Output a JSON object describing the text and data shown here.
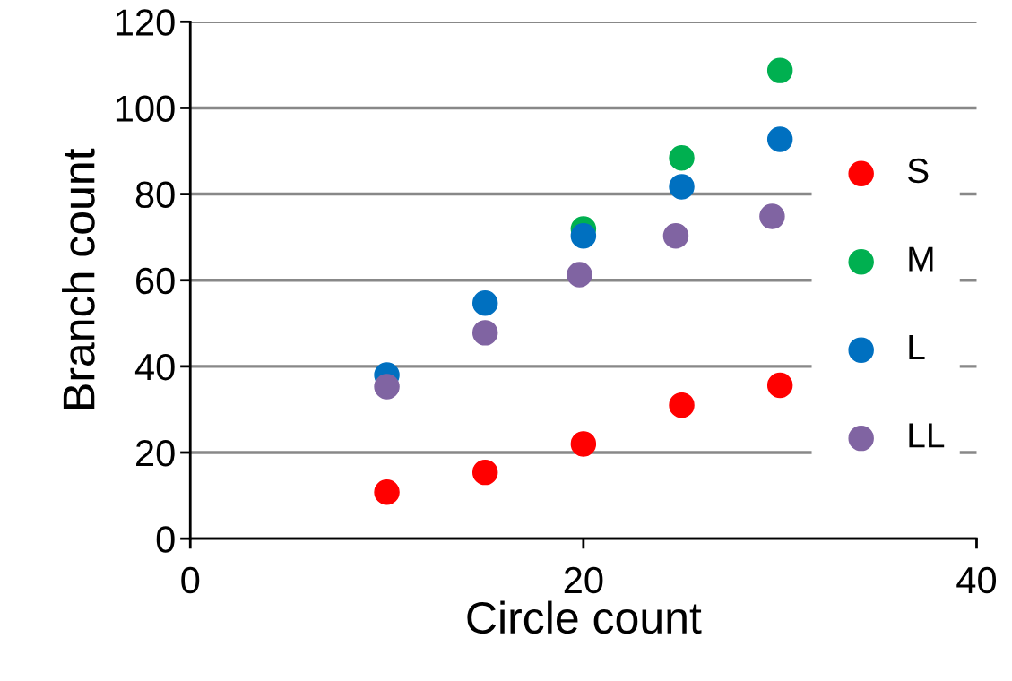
{
  "chart_data": {
    "type": "scatter",
    "xlabel": "Circle count",
    "ylabel": "Branch count",
    "xlim": [
      0,
      40
    ],
    "xticks": [
      0,
      20,
      40
    ],
    "ylim": [
      0,
      120
    ],
    "yticks": [
      0,
      20,
      40,
      60,
      80,
      100,
      120
    ],
    "grid": "y",
    "legend": "right",
    "marker": "circle",
    "series": [
      {
        "name": "S",
        "color": "#ff0000",
        "x": [
          10,
          15,
          20,
          25,
          30
        ],
        "values": [
          10.8,
          15.4,
          22.0,
          31.0,
          35.6
        ]
      },
      {
        "name": "M",
        "color": "#00b050",
        "x": [
          20,
          25,
          30
        ],
        "values": [
          71.9,
          88.4,
          108.7
        ]
      },
      {
        "name": "L",
        "color": "#0070c0",
        "x": [
          10,
          15,
          20,
          25,
          30
        ],
        "values": [
          38.0,
          54.7,
          70.3,
          81.7,
          92.7
        ]
      },
      {
        "name": "LL",
        "color": "#8064a2",
        "x": [
          10,
          15,
          19.8,
          24.7,
          29.6
        ],
        "values": [
          35.3,
          47.8,
          61.3,
          70.3,
          74.8
        ]
      }
    ]
  }
}
